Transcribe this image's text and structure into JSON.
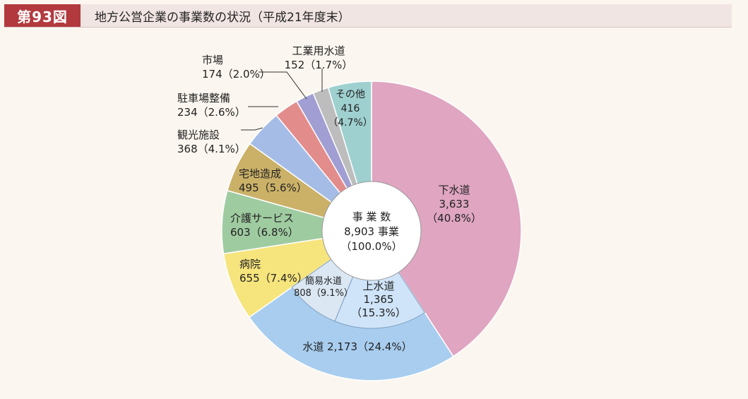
{
  "header": {
    "figure_number": "第93図",
    "title": "地方公営企業の事業数の状況（平成21年度末）"
  },
  "center": {
    "line1": "事 業 数",
    "line2": "8,903 事業",
    "line3": "（100.0%）"
  },
  "chart_data": {
    "type": "pie",
    "total": 8903,
    "outer_slices": [
      {
        "name": "下水道",
        "value": 3633,
        "percent": 40.8,
        "color": "#dfa5c1",
        "label_lines": [
          "下水道",
          "3,633",
          "（40.8%）"
        ]
      },
      {
        "name": "水道",
        "value": 2173,
        "percent": 24.4,
        "color": "#a8cdef",
        "label_lines": [
          "水道  2,173（24.4%）"
        ]
      },
      {
        "name": "病院",
        "value": 655,
        "percent": 7.4,
        "color": "#f6e47d",
        "label_lines": [
          "病院",
          "655（7.4%）"
        ]
      },
      {
        "name": "介護サービス",
        "value": 603,
        "percent": 6.8,
        "color": "#9fcba0",
        "label_lines": [
          "介護サービス",
          "603（6.8%）"
        ]
      },
      {
        "name": "宅地造成",
        "value": 495,
        "percent": 5.6,
        "color": "#cbb168",
        "label_lines": [
          "宅地造成",
          "495（5.6%）"
        ]
      },
      {
        "name": "観光施設",
        "value": 368,
        "percent": 4.1,
        "color": "#a5bde6",
        "label_lines": [
          "観光施設",
          "368（4.1%）"
        ]
      },
      {
        "name": "駐車場整備",
        "value": 234,
        "percent": 2.6,
        "color": "#e38c8c",
        "label_lines": [
          "駐車場整備",
          "234（2.6%）"
        ]
      },
      {
        "name": "市場",
        "value": 174,
        "percent": 2.0,
        "color": "#a09ed2",
        "label_lines": [
          "市場",
          "174（2.0%）"
        ]
      },
      {
        "name": "工業用水道",
        "value": 152,
        "percent": 1.7,
        "color": "#bdbdbd",
        "label_lines": [
          "工業用水道",
          "152（1.7%）"
        ]
      },
      {
        "name": "その他",
        "value": 416,
        "percent": 4.7,
        "color": "#9fd0d0",
        "label_lines": [
          "その他",
          "416",
          "（4.7%）"
        ]
      }
    ],
    "inner_slices": {
      "parent": "水道",
      "items": [
        {
          "name": "上水道",
          "value": 1365,
          "percent": 15.3,
          "color": "#cfe4f8",
          "label_lines": [
            "上水道",
            "1,365",
            "（15.3%）"
          ]
        },
        {
          "name": "簡易水道",
          "value": 808,
          "percent": 9.1,
          "color": "#dbe7f3",
          "label_lines": [
            "簡易水道",
            "808（9.1%）"
          ]
        }
      ]
    }
  }
}
